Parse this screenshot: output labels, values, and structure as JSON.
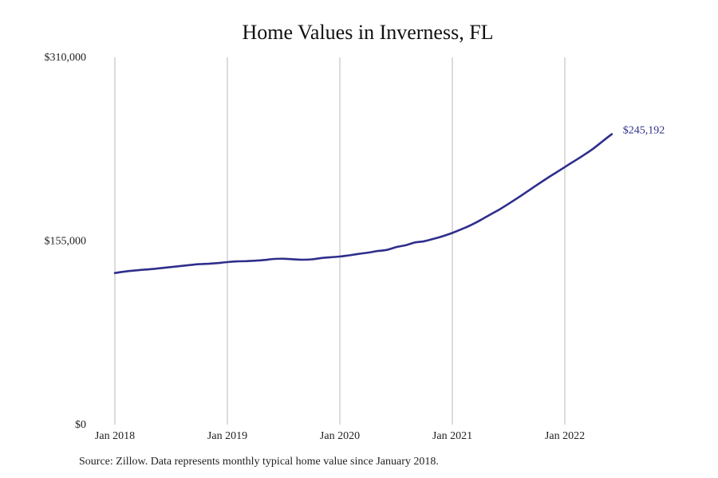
{
  "chart_data": {
    "type": "line",
    "title": "Home Values in Inverness, FL",
    "xlabel": "",
    "ylabel": "",
    "ylim": [
      0,
      310000
    ],
    "y_ticks": [
      {
        "value": 0,
        "label": "$0"
      },
      {
        "value": 155000,
        "label": "$155,000"
      },
      {
        "value": 310000,
        "label": "$310,000"
      }
    ],
    "x_ticks": [
      {
        "value": "2018-01",
        "label": "Jan 2018"
      },
      {
        "value": "2019-01",
        "label": "Jan 2019"
      },
      {
        "value": "2020-01",
        "label": "Jan 2020"
      },
      {
        "value": "2021-01",
        "label": "Jan 2021"
      },
      {
        "value": "2022-01",
        "label": "Jan 2022"
      }
    ],
    "grid": {
      "vertical": true,
      "horizontal": false
    },
    "line_color": "#2e2e8c",
    "end_label": "$245,192",
    "series": [
      {
        "x": [
          "2018-01",
          "2018-02",
          "2018-03",
          "2018-04",
          "2018-05",
          "2018-06",
          "2018-07",
          "2018-08",
          "2018-09",
          "2018-10",
          "2018-11",
          "2018-12",
          "2019-01",
          "2019-02",
          "2019-03",
          "2019-04",
          "2019-05",
          "2019-06",
          "2019-07",
          "2019-08",
          "2019-09",
          "2019-10",
          "2019-11",
          "2019-12",
          "2020-01",
          "2020-02",
          "2020-03",
          "2020-04",
          "2020-05",
          "2020-06",
          "2020-07",
          "2020-08",
          "2020-09",
          "2020-10",
          "2020-11",
          "2020-12",
          "2021-01",
          "2021-02",
          "2021-03",
          "2021-04",
          "2021-05",
          "2021-06",
          "2021-07",
          "2021-08",
          "2021-09",
          "2021-10",
          "2021-11",
          "2021-12",
          "2022-01",
          "2022-02",
          "2022-03",
          "2022-04",
          "2022-05",
          "2022-06"
        ],
        "values": [
          128000,
          129200,
          130000,
          130700,
          131300,
          132200,
          133000,
          133900,
          134700,
          135400,
          135800,
          136400,
          137200,
          137800,
          138000,
          138400,
          139000,
          139900,
          140000,
          139600,
          139200,
          139500,
          140600,
          141300,
          141900,
          142900,
          144100,
          145200,
          146500,
          147500,
          149800,
          151400,
          153700,
          154800,
          156800,
          159100,
          161800,
          165000,
          168500,
          172600,
          177100,
          181500,
          186400,
          191500,
          196800,
          202200,
          207400,
          212400,
          217400,
          222400,
          227400,
          232800,
          239000,
          245192
        ]
      }
    ]
  },
  "footer": {
    "source_text": "Source: Zillow. Data represents monthly typical home value since January 2018."
  }
}
